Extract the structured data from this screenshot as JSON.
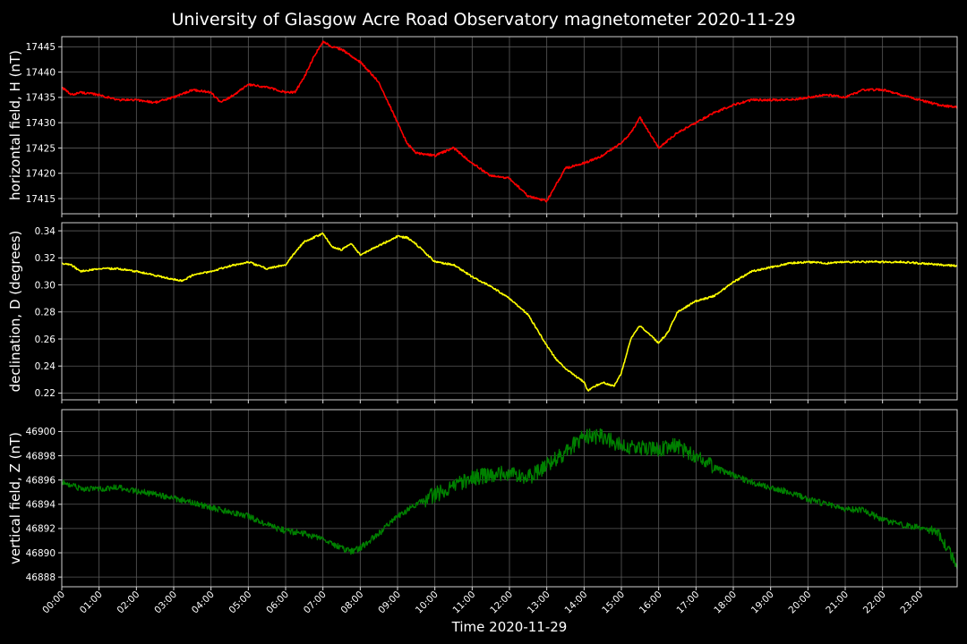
{
  "page": {
    "title": "University of Glasgow Acre Road Observatory magnetometer 2020-11-29"
  },
  "chart_data": [
    {
      "type": "line",
      "ylabel": "horizontal field, H (nT)",
      "color": "#ff0000",
      "ylim": [
        17412,
        17447
      ],
      "yticks": [
        17415,
        17420,
        17425,
        17430,
        17435,
        17440,
        17445
      ],
      "xlim": [
        0,
        24
      ],
      "grid": true,
      "series": [
        {
          "x": [
            0,
            0.25,
            0.5,
            1,
            1.5,
            2,
            2.5,
            3,
            3.5,
            4,
            4.25,
            4.5,
            5,
            5.5,
            6,
            6.25,
            6.5,
            6.75,
            7,
            7.25,
            7.5,
            8,
            8.5,
            9,
            9.25,
            9.5,
            10,
            10.5,
            11,
            11.5,
            12,
            12.5,
            13,
            13.5,
            14,
            14.5,
            15,
            15.25,
            15.5,
            16,
            16.5,
            17,
            17.5,
            18,
            18.5,
            19,
            19.5,
            20,
            20.5,
            21,
            21.5,
            22,
            22.5,
            23,
            23.5,
            24
          ],
          "y": [
            17437,
            17435.5,
            17436,
            17435.5,
            17434.5,
            17434.5,
            17434,
            17435,
            17436.5,
            17436,
            17434,
            17435,
            17437.5,
            17437,
            17436,
            17436,
            17439,
            17443,
            17446,
            17445,
            17444.5,
            17442,
            17438,
            17430,
            17426,
            17424,
            17423.5,
            17425,
            17422,
            17419.5,
            17419,
            17415.5,
            17414.5,
            17421,
            17422,
            17423.5,
            17426,
            17428,
            17431,
            17425,
            17428,
            17430,
            17432,
            17433.5,
            17434.5,
            17434.5,
            17434.5,
            17435,
            17435.5,
            17435,
            17436.5,
            17436.5,
            17435.5,
            17434.5,
            17433.5,
            17433
          ]
        }
      ]
    },
    {
      "type": "line",
      "ylabel": "declination, D (degrees)",
      "color": "#ffff00",
      "ylim": [
        0.215,
        0.346
      ],
      "yticks": [
        0.22,
        0.24,
        0.26,
        0.28,
        0.3,
        0.32,
        0.34
      ],
      "xlim": [
        0,
        24
      ],
      "grid": true,
      "series": [
        {
          "x": [
            0,
            0.25,
            0.5,
            1,
            1.5,
            2,
            2.5,
            3,
            3.25,
            3.5,
            4,
            4.5,
            5,
            5.5,
            6,
            6.25,
            6.5,
            7,
            7.25,
            7.5,
            7.75,
            8,
            8.5,
            9,
            9.25,
            9.5,
            10,
            10.5,
            11,
            11.5,
            12,
            12.5,
            13,
            13.25,
            13.5,
            14,
            14.1,
            14.5,
            14.8,
            15,
            15.25,
            15.5,
            16,
            16.25,
            16.5,
            17,
            17.5,
            18,
            18.5,
            19,
            19.5,
            20,
            20.5,
            21,
            21.5,
            22,
            22.5,
            23,
            23.5,
            24
          ],
          "y": [
            0.316,
            0.315,
            0.31,
            0.312,
            0.312,
            0.31,
            0.307,
            0.304,
            0.303,
            0.307,
            0.31,
            0.314,
            0.317,
            0.312,
            0.315,
            0.324,
            0.332,
            0.338,
            0.328,
            0.326,
            0.331,
            0.322,
            0.329,
            0.336,
            0.335,
            0.33,
            0.317,
            0.315,
            0.306,
            0.299,
            0.29,
            0.278,
            0.255,
            0.245,
            0.238,
            0.228,
            0.222,
            0.228,
            0.225,
            0.235,
            0.26,
            0.27,
            0.257,
            0.265,
            0.28,
            0.288,
            0.292,
            0.302,
            0.31,
            0.313,
            0.316,
            0.317,
            0.316,
            0.317,
            0.317,
            0.317,
            0.317,
            0.316,
            0.315,
            0.314
          ]
        }
      ]
    },
    {
      "type": "line",
      "ylabel": "vertical field, Z (nT)",
      "color": "#008000",
      "ylim": [
        46887.2,
        46901.8
      ],
      "yticks": [
        46888,
        46890,
        46892,
        46894,
        46896,
        46898,
        46900
      ],
      "xlim": [
        0,
        24
      ],
      "grid": true,
      "series": [
        {
          "x": [
            0,
            0.5,
            1,
            1.5,
            2,
            2.5,
            3,
            3.5,
            4,
            4.5,
            5,
            5.5,
            6,
            6.5,
            7,
            7.5,
            7.75,
            8,
            8.5,
            9,
            9.5,
            10,
            10.5,
            11,
            11.5,
            12,
            12.5,
            13,
            13.5,
            14,
            14.5,
            15,
            15.5,
            16,
            16.5,
            17,
            17.5,
            18,
            18.5,
            19,
            19.5,
            20,
            20.5,
            21,
            21.5,
            22,
            22.5,
            23,
            23.5,
            23.75,
            24
          ],
          "y": [
            46895.8,
            46895.3,
            46895.2,
            46895.4,
            46895.1,
            46894.8,
            46894.5,
            46894.1,
            46893.7,
            46893.4,
            46893,
            46892.3,
            46891.8,
            46891.6,
            46891.1,
            46890.4,
            46890.1,
            46890.4,
            46891.6,
            46893,
            46894,
            46894.8,
            46895.4,
            46896.2,
            46896.4,
            46896.6,
            46896.2,
            46897.2,
            46898.3,
            46899.6,
            46899.6,
            46898.8,
            46898.6,
            46898.6,
            46898.8,
            46898,
            46897,
            46896.4,
            46895.8,
            46895.4,
            46895,
            46894.4,
            46894,
            46893.6,
            46893.5,
            46892.7,
            46892.3,
            46892.1,
            46891.6,
            46890.3,
            46889
          ]
        }
      ]
    }
  ],
  "x_axis": {
    "label": "Time 2020-11-29",
    "ticks": [
      "00:00",
      "01:00",
      "02:00",
      "03:00",
      "04:00",
      "05:00",
      "06:00",
      "07:00",
      "08:00",
      "09:00",
      "10:00",
      "11:00",
      "12:00",
      "13:00",
      "14:00",
      "15:00",
      "16:00",
      "17:00",
      "18:00",
      "19:00",
      "20:00",
      "21:00",
      "22:00",
      "23:00"
    ]
  }
}
